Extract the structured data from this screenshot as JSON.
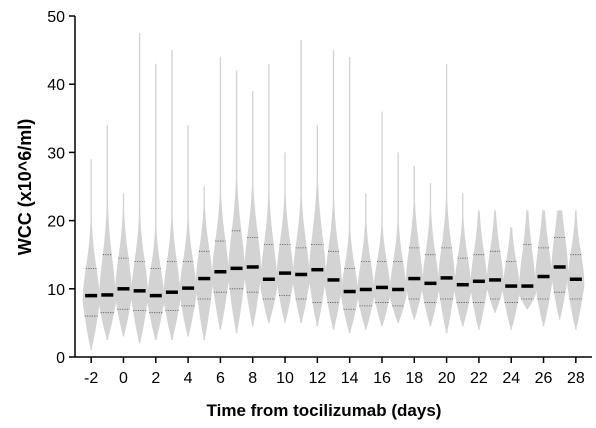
{
  "chart_data": {
    "type": "violin",
    "title": "",
    "xlabel": "Time from tocilizumab (days)",
    "ylabel": "WCC (x10^6/ml)",
    "ylim": [
      0,
      50
    ],
    "y_ticks": [
      0,
      10,
      20,
      30,
      40,
      50
    ],
    "x_range": [
      -3,
      29
    ],
    "x_ticks": [
      -2,
      0,
      2,
      4,
      6,
      8,
      10,
      12,
      14,
      16,
      18,
      20,
      22,
      24,
      26,
      28
    ],
    "grid": false,
    "legend": "none",
    "colors": {
      "violin": "#d3d3d3",
      "median": "#000000",
      "quartile": "#555555",
      "axis": "#000000"
    },
    "series": [
      {
        "day": -2,
        "median": 9.0,
        "q1": 6.0,
        "q3": 13.0,
        "min": 1.0,
        "max": 29.0
      },
      {
        "day": -1,
        "median": 9.1,
        "q1": 6.5,
        "q3": 15.0,
        "min": 2.5,
        "max": 34.0
      },
      {
        "day": 0,
        "median": 10.0,
        "q1": 7.0,
        "q3": 14.5,
        "min": 3.0,
        "max": 24.0
      },
      {
        "day": 1,
        "median": 9.7,
        "q1": 6.8,
        "q3": 14.0,
        "min": 2.0,
        "max": 47.5
      },
      {
        "day": 2,
        "median": 9.0,
        "q1": 6.5,
        "q3": 13.0,
        "min": 2.5,
        "max": 43.0
      },
      {
        "day": 3,
        "median": 9.5,
        "q1": 6.8,
        "q3": 14.0,
        "min": 2.5,
        "max": 45.0
      },
      {
        "day": 4,
        "median": 10.1,
        "q1": 7.5,
        "q3": 14.0,
        "min": 3.0,
        "max": 34.0
      },
      {
        "day": 5,
        "median": 11.5,
        "q1": 8.5,
        "q3": 15.5,
        "min": 2.5,
        "max": 25.0
      },
      {
        "day": 6,
        "median": 12.5,
        "q1": 9.5,
        "q3": 17.0,
        "min": 4.0,
        "max": 44.0
      },
      {
        "day": 7,
        "median": 13.0,
        "q1": 10.0,
        "q3": 18.5,
        "min": 3.5,
        "max": 42.0
      },
      {
        "day": 8,
        "median": 13.2,
        "q1": 9.5,
        "q3": 17.5,
        "min": 4.5,
        "max": 39.0
      },
      {
        "day": 9,
        "median": 11.4,
        "q1": 8.5,
        "q3": 16.5,
        "min": 5.0,
        "max": 43.0
      },
      {
        "day": 10,
        "median": 12.3,
        "q1": 9.0,
        "q3": 16.5,
        "min": 5.0,
        "max": 30.0
      },
      {
        "day": 11,
        "median": 12.1,
        "q1": 8.5,
        "q3": 16.0,
        "min": 5.0,
        "max": 46.5
      },
      {
        "day": 12,
        "median": 12.8,
        "q1": 8.0,
        "q3": 16.5,
        "min": 4.5,
        "max": 34.0
      },
      {
        "day": 13,
        "median": 11.3,
        "q1": 8.0,
        "q3": 15.5,
        "min": 4.0,
        "max": 45.0
      },
      {
        "day": 14,
        "median": 9.6,
        "q1": 7.0,
        "q3": 13.0,
        "min": 3.5,
        "max": 44.0
      },
      {
        "day": 15,
        "median": 9.9,
        "q1": 7.5,
        "q3": 14.0,
        "min": 4.0,
        "max": 24.0
      },
      {
        "day": 16,
        "median": 10.2,
        "q1": 8.0,
        "q3": 14.0,
        "min": 4.5,
        "max": 36.0
      },
      {
        "day": 17,
        "median": 9.9,
        "q1": 7.5,
        "q3": 14.0,
        "min": 5.0,
        "max": 30.0
      },
      {
        "day": 18,
        "median": 11.5,
        "q1": 8.5,
        "q3": 16.0,
        "min": 5.5,
        "max": 28.0
      },
      {
        "day": 19,
        "median": 10.8,
        "q1": 8.0,
        "q3": 15.0,
        "min": 4.5,
        "max": 25.5
      },
      {
        "day": 20,
        "median": 11.6,
        "q1": 8.5,
        "q3": 16.0,
        "min": 3.5,
        "max": 43.0
      },
      {
        "day": 21,
        "median": 10.6,
        "q1": 8.0,
        "q3": 14.5,
        "min": 4.5,
        "max": 24.0
      },
      {
        "day": 22,
        "median": 11.1,
        "q1": 8.0,
        "q3": 15.0,
        "min": 4.0,
        "max": 21.5
      },
      {
        "day": 23,
        "median": 11.3,
        "q1": 8.5,
        "q3": 15.5,
        "min": 6.5,
        "max": 21.5
      },
      {
        "day": 24,
        "median": 10.4,
        "q1": 8.0,
        "q3": 14.0,
        "min": 4.0,
        "max": 19.0
      },
      {
        "day": 25,
        "median": 10.4,
        "q1": 8.5,
        "q3": 16.5,
        "min": 7.0,
        "max": 21.5
      },
      {
        "day": 26,
        "median": 11.8,
        "q1": 8.5,
        "q3": 16.0,
        "min": 4.5,
        "max": 21.5
      },
      {
        "day": 27,
        "median": 13.2,
        "q1": 9.5,
        "q3": 17.5,
        "min": 5.5,
        "max": 21.5
      },
      {
        "day": 28,
        "median": 11.4,
        "q1": 8.5,
        "q3": 15.0,
        "min": 4.0,
        "max": 21.5
      }
    ]
  }
}
